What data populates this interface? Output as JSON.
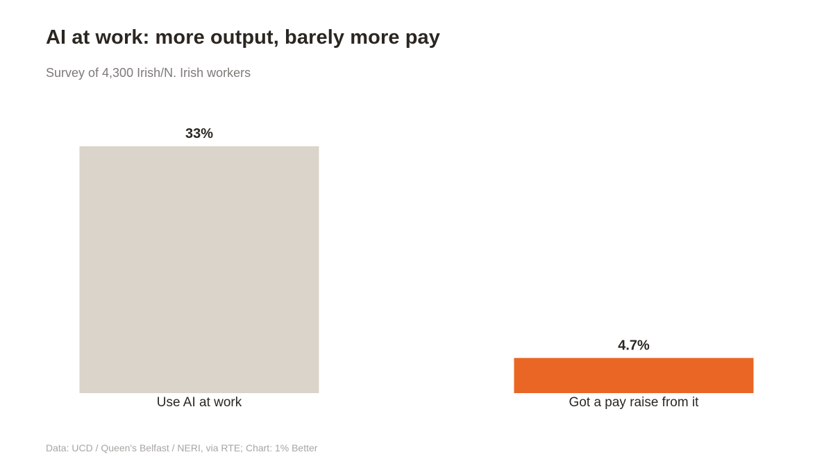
{
  "title": "AI at work: more output, barely more pay",
  "subtitle": "Survey of 4,300 Irish/N. Irish workers",
  "source": "Data: UCD / Queen's Belfast / NERI, via RTE; Chart: 1% Better",
  "chart_data": {
    "type": "bar",
    "categories": [
      "Use AI at work",
      "Got a pay raise from it"
    ],
    "values": [
      33,
      4.7
    ],
    "value_labels": [
      "33%",
      "4.7%"
    ],
    "bar_colors": [
      "#dbd4ca",
      "#e96624"
    ],
    "ylim": [
      0,
      33
    ],
    "grid": false,
    "legend": "none"
  }
}
